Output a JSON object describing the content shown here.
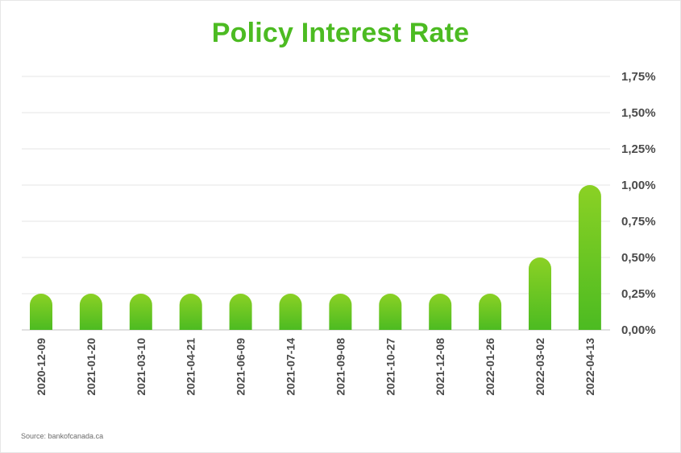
{
  "title": "Policy Interest Rate",
  "source": "Source: bankofcanada.ca",
  "colors": {
    "title": "#4cbb22",
    "bar_top": "#8bd124",
    "bar_bottom": "#4cbb22",
    "grid": "#e6e6e6",
    "text": "#4a4a4a"
  },
  "chart_data": {
    "type": "bar",
    "title": "Policy Interest Rate",
    "xlabel": "",
    "ylabel": "",
    "categories": [
      "2020-12-09",
      "2021-01-20",
      "2021-03-10",
      "2021-04-21",
      "2021-06-09",
      "2021-07-14",
      "2021-09-08",
      "2021-10-27",
      "2021-12-08",
      "2022-01-26",
      "2022-03-02",
      "2022-04-13"
    ],
    "values": [
      0.25,
      0.25,
      0.25,
      0.25,
      0.25,
      0.25,
      0.25,
      0.25,
      0.25,
      0.25,
      0.5,
      1.0
    ],
    "ylim": [
      0,
      1.75
    ],
    "y_ticks": [
      0,
      0.25,
      0.5,
      0.75,
      1.0,
      1.25,
      1.5,
      1.75
    ],
    "y_tick_labels": [
      "0,00%",
      "0,25%",
      "0,50%",
      "0,75%",
      "1,00%",
      "1,25%",
      "1,50%",
      "1,75%"
    ],
    "y_axis_side": "right",
    "grid": true,
    "legend": "none"
  }
}
